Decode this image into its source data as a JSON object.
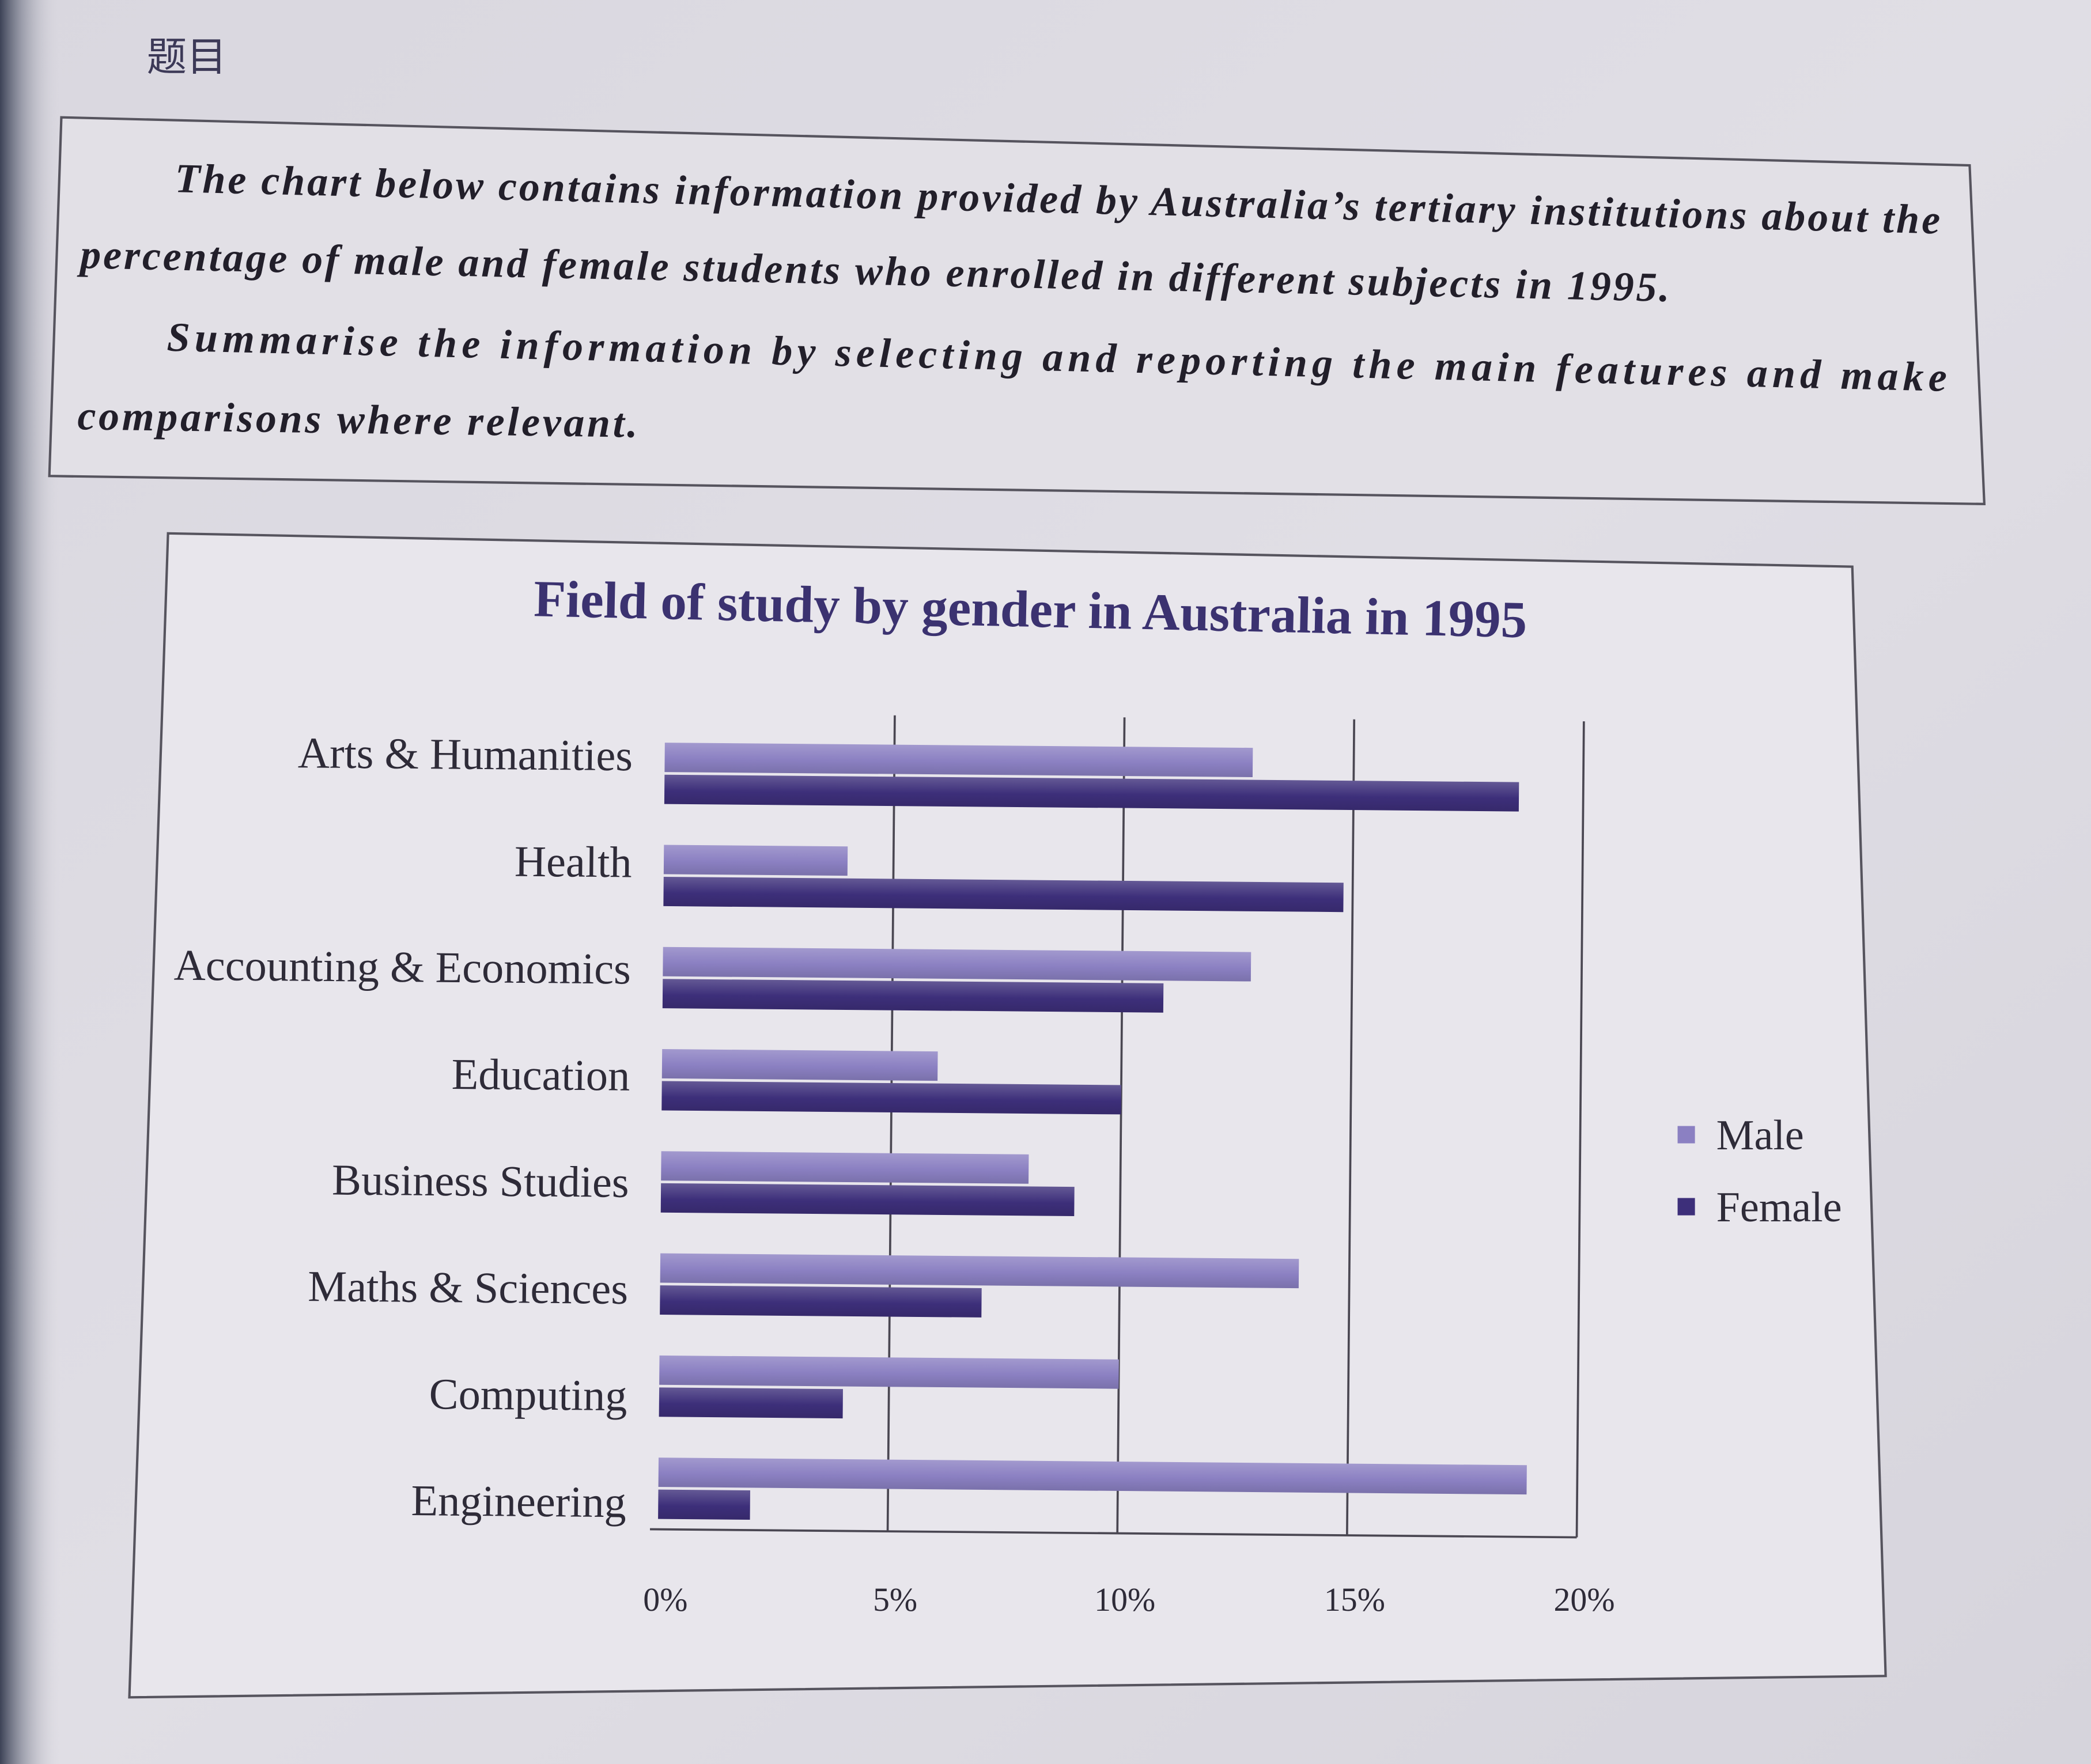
{
  "header": {
    "label": "题目"
  },
  "prompt": {
    "paragraph1": [
      "The chart below contains information provided by Australia’s tertiary institutions about the",
      "percentage of male and female students who enrolled in different subjects in 1995."
    ],
    "paragraph2": [
      "Summarise the information by selecting and reporting the main features and make",
      "comparisons where relevant."
    ]
  },
  "colors": {
    "title": "#3b3270",
    "text": "#2e2b38"
  },
  "chart_data": {
    "type": "bar",
    "orientation": "horizontal",
    "title": "Field of study by gender in Australia in 1995",
    "categories": [
      "Arts & Humanities",
      "Health",
      "Accounting & Economics",
      "Education",
      "Business Studies",
      "Maths & Sciences",
      "Computing",
      "Engineering"
    ],
    "series": [
      {
        "name": "Male",
        "color": "#8b80c2",
        "values": [
          12.8,
          4.0,
          12.8,
          6.0,
          8.0,
          13.9,
          10.0,
          18.9
        ]
      },
      {
        "name": "Female",
        "color": "#3d2f7a",
        "values": [
          18.6,
          14.8,
          10.9,
          10.0,
          9.0,
          7.0,
          4.0,
          2.0
        ]
      }
    ],
    "xlim": [
      0,
      20
    ],
    "x_ticks": [
      0,
      5,
      10,
      15,
      20
    ],
    "x_tick_labels": [
      "0%",
      "5%",
      "10%",
      "15%",
      "20%"
    ],
    "grid": true,
    "legend": "right"
  }
}
